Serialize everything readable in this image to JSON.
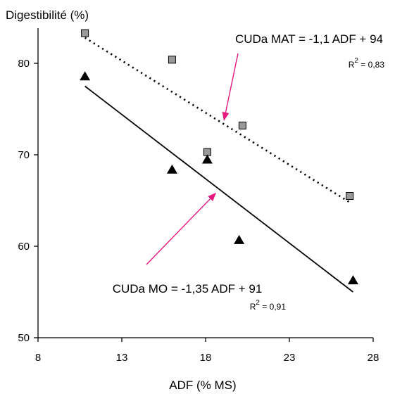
{
  "chart_data": {
    "type": "scatter",
    "ylabel": "Digestibilité (%)",
    "xlabel": "ADF (% MS)",
    "xlim": [
      8,
      28
    ],
    "ylim": [
      50,
      85
    ],
    "xticks": [
      8,
      13,
      18,
      23,
      28
    ],
    "yticks": [
      50,
      60,
      70,
      80
    ],
    "grid": false,
    "series": [
      {
        "marker": "square",
        "color": "#999999",
        "line_style": "dotted",
        "points": [
          {
            "x": 10.8,
            "y": 83.3
          },
          {
            "x": 16.0,
            "y": 80.4
          },
          {
            "x": 18.1,
            "y": 70.3
          },
          {
            "x": 20.2,
            "y": 73.2
          },
          {
            "x": 26.6,
            "y": 65.5
          }
        ],
        "fit": {
          "x": [
            10.8,
            26.6
          ],
          "y": [
            82.8,
            64.8
          ]
        }
      },
      {
        "marker": "triangle",
        "color": "#000000",
        "line_style": "solid",
        "points": [
          {
            "x": 10.8,
            "y": 78.6
          },
          {
            "x": 16.0,
            "y": 68.4
          },
          {
            "x": 18.1,
            "y": 69.5
          },
          {
            "x": 20.0,
            "y": 60.7
          },
          {
            "x": 26.8,
            "y": 56.3
          }
        ],
        "fit": {
          "x": [
            10.8,
            26.8
          ],
          "y": [
            77.5,
            55.0
          ]
        }
      }
    ],
    "annotations": [
      {
        "text": "CUDa MAT = -1,1 ADF + 94",
        "r2_base": "R",
        "r2_exp": "2",
        "r2_value": " = 0,83",
        "arrow_color": "#e6197e",
        "arrow_to": {
          "x": 19.1,
          "y": 73.8
        }
      },
      {
        "text": "CUDa MO = -1,35 ADF + 91",
        "r2_base": "R",
        "r2_exp": "2",
        "r2_value": " = 0,91",
        "arrow_color": "#e6197e",
        "arrow_to": {
          "x": 18.6,
          "y": 65.8
        }
      }
    ]
  }
}
